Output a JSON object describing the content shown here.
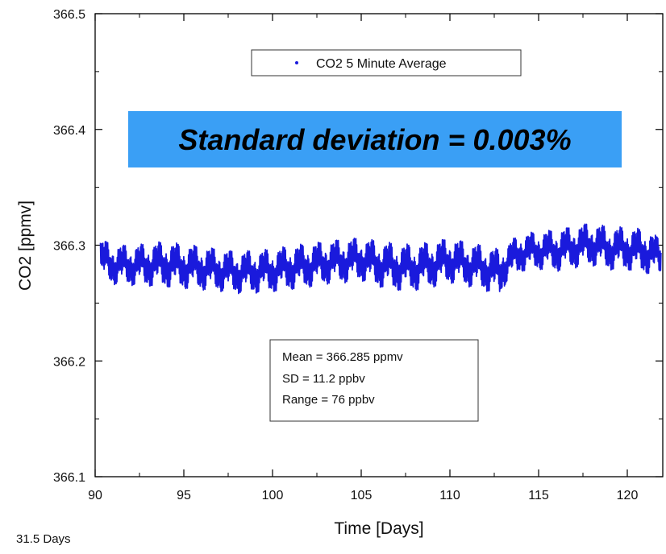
{
  "chart_data": {
    "type": "line",
    "title": "",
    "xlabel": "Time [Days]",
    "ylabel": "CO2 [ppmv]",
    "xlim": [
      90,
      122
    ],
    "ylim": [
      366.1,
      366.5
    ],
    "x_ticks": [
      90,
      95,
      100,
      105,
      110,
      115,
      120
    ],
    "y_ticks": [
      366.1,
      366.2,
      366.3,
      366.4,
      366.5
    ],
    "x_tick_labels": [
      "90",
      "95",
      "100",
      "105",
      "110",
      "115",
      "120"
    ],
    "y_tick_labels": [
      "366.1",
      "366.2",
      "366.3",
      "366.4",
      "366.5"
    ],
    "grid": false,
    "legend": {
      "position": "top-center",
      "entries": [
        "CO2 5 Minute Average"
      ]
    },
    "series": [
      {
        "name": "CO2 5 Minute Average",
        "color": "#1a1adc",
        "envelope": {
          "x": [
            90.3,
            91,
            92,
            93,
            94,
            95,
            96,
            97,
            98,
            99,
            100,
            101,
            102,
            103,
            104,
            105,
            106,
            107,
            108,
            109,
            110,
            111,
            112,
            112.8,
            113.2,
            114,
            115,
            116,
            117,
            118,
            119,
            120,
            121,
            121.9
          ],
          "upper": [
            366.308,
            366.303,
            366.302,
            366.304,
            366.306,
            366.303,
            366.302,
            366.299,
            366.297,
            366.298,
            366.299,
            366.302,
            366.304,
            366.306,
            366.308,
            366.309,
            366.306,
            366.304,
            366.303,
            366.306,
            366.309,
            366.305,
            366.302,
            366.299,
            366.304,
            366.312,
            366.314,
            366.316,
            366.319,
            366.322,
            366.318,
            366.318,
            366.316,
            366.308
          ],
          "lower": [
            366.269,
            366.264,
            366.263,
            366.262,
            366.261,
            366.26,
            366.259,
            366.258,
            366.256,
            366.256,
            366.257,
            366.259,
            366.261,
            366.264,
            366.265,
            366.267,
            366.261,
            366.258,
            366.258,
            366.261,
            366.265,
            366.262,
            366.258,
            366.253,
            366.266,
            366.275,
            366.277,
            366.275,
            366.278,
            366.28,
            366.276,
            366.276,
            366.273,
            366.272
          ]
        }
      }
    ],
    "annotations": {
      "highlight": "Standard deviation = 0.003%",
      "stats": [
        "Mean  = 366.285 ppmv",
        "SD = 11.2 ppbv",
        "Range = 76 ppbv"
      ],
      "footnote": "31.5 Days"
    },
    "colors": {
      "highlight_bg": "#3a9ff5",
      "axes": "#000000"
    }
  }
}
